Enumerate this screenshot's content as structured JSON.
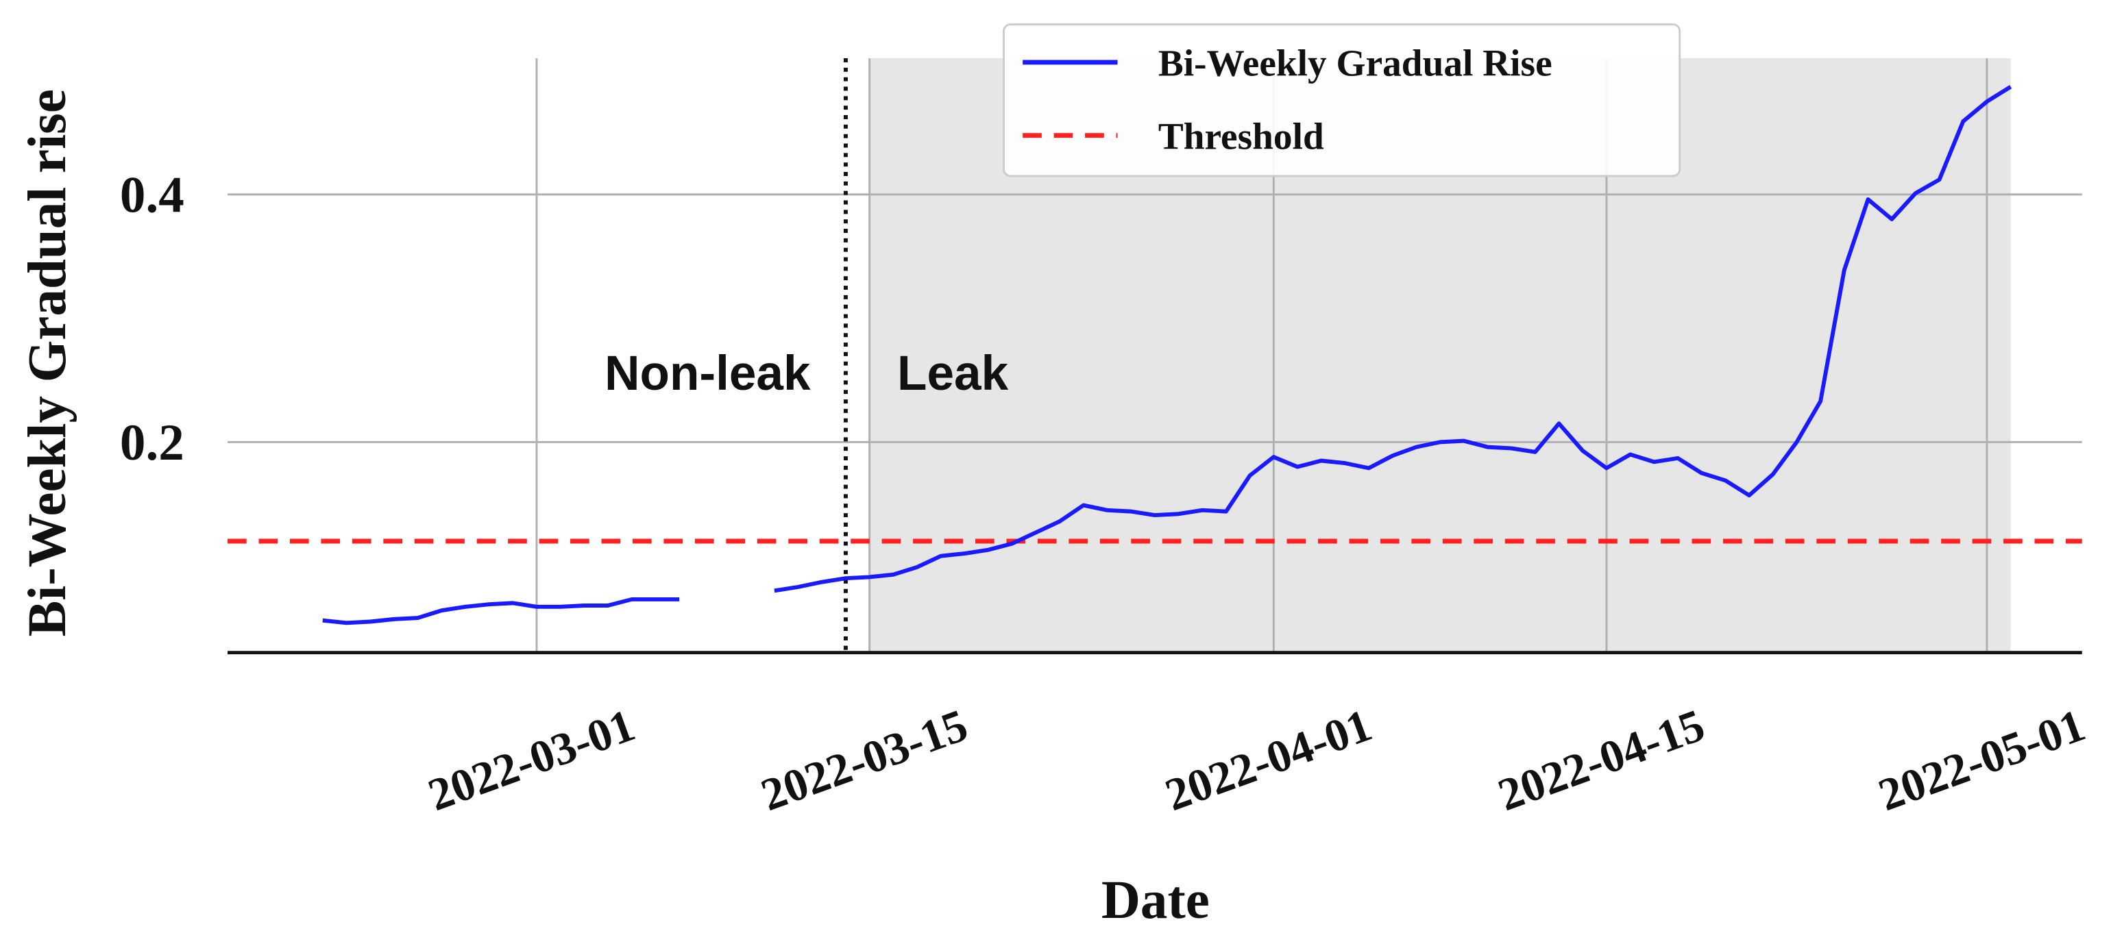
{
  "chart_data": {
    "type": "line",
    "xlabel": "Date",
    "ylabel": "Bi-Weekly Gradual rise",
    "x": [
      "2022-02-20",
      "2022-02-21",
      "2022-02-22",
      "2022-02-23",
      "2022-02-24",
      "2022-02-25",
      "2022-02-26",
      "2022-02-27",
      "2022-02-28",
      "2022-03-01",
      "2022-03-02",
      "2022-03-03",
      "2022-03-04",
      "2022-03-05",
      "2022-03-06",
      "2022-03-07",
      "2022-03-08",
      "2022-03-09",
      "2022-03-10",
      "2022-03-11",
      "2022-03-12",
      "2022-03-13",
      "2022-03-14",
      "2022-03-15",
      "2022-03-16",
      "2022-03-17",
      "2022-03-18",
      "2022-03-19",
      "2022-03-20",
      "2022-03-21",
      "2022-03-22",
      "2022-03-23",
      "2022-03-24",
      "2022-03-25",
      "2022-03-26",
      "2022-03-27",
      "2022-03-28",
      "2022-03-29",
      "2022-03-30",
      "2022-03-31",
      "2022-04-01",
      "2022-04-02",
      "2022-04-03",
      "2022-04-04",
      "2022-04-05",
      "2022-04-06",
      "2022-04-07",
      "2022-04-08",
      "2022-04-09",
      "2022-04-10",
      "2022-04-11",
      "2022-04-12",
      "2022-04-13",
      "2022-04-14",
      "2022-04-15",
      "2022-04-16",
      "2022-04-17",
      "2022-04-18",
      "2022-04-19",
      "2022-04-20",
      "2022-04-21",
      "2022-04-22",
      "2022-04-23",
      "2022-04-24",
      "2022-04-25",
      "2022-04-26",
      "2022-04-27",
      "2022-04-28",
      "2022-04-29",
      "2022-04-30",
      "2022-05-01",
      "2022-05-02"
    ],
    "series": [
      {
        "name": "Bi-Weekly Gradual Rise",
        "color": "#1a1aff",
        "values": [
          0.056,
          0.054,
          0.055,
          0.057,
          0.058,
          0.064,
          0.067,
          0.069,
          0.07,
          0.067,
          0.067,
          0.068,
          0.068,
          0.073,
          0.073,
          0.073,
          null,
          null,
          null,
          0.08,
          0.083,
          0.087,
          0.09,
          0.091,
          0.093,
          0.099,
          0.108,
          0.11,
          0.113,
          0.118,
          0.127,
          0.136,
          0.149,
          0.145,
          0.144,
          0.141,
          0.142,
          0.145,
          0.144,
          0.173,
          0.188,
          0.18,
          0.185,
          0.183,
          0.179,
          0.189,
          0.196,
          0.2,
          0.201,
          0.196,
          0.195,
          0.192,
          0.215,
          0.193,
          0.179,
          0.19,
          0.184,
          0.187,
          0.175,
          0.169,
          0.157,
          0.174,
          0.2,
          0.233,
          0.339,
          0.396,
          0.38,
          0.401,
          0.412,
          0.459,
          0.475,
          0.487
        ]
      }
    ],
    "threshold": {
      "name": "Threshold",
      "color": "#ff2020",
      "value": 0.12
    },
    "vline": "2022-03-14",
    "shade": [
      "2022-03-15",
      "2022-05-02"
    ],
    "annotations": [
      "Non-leak",
      "Leak"
    ],
    "xlim": [
      "2022-02-16",
      "2022-05-05"
    ],
    "xticks": [
      "2022-03-01",
      "2022-03-15",
      "2022-04-01",
      "2022-04-15",
      "2022-05-01"
    ],
    "ylim": [
      0.03,
      0.51
    ],
    "yticks": [
      0.2,
      0.4
    ],
    "grid": true,
    "legend": "top-center"
  }
}
